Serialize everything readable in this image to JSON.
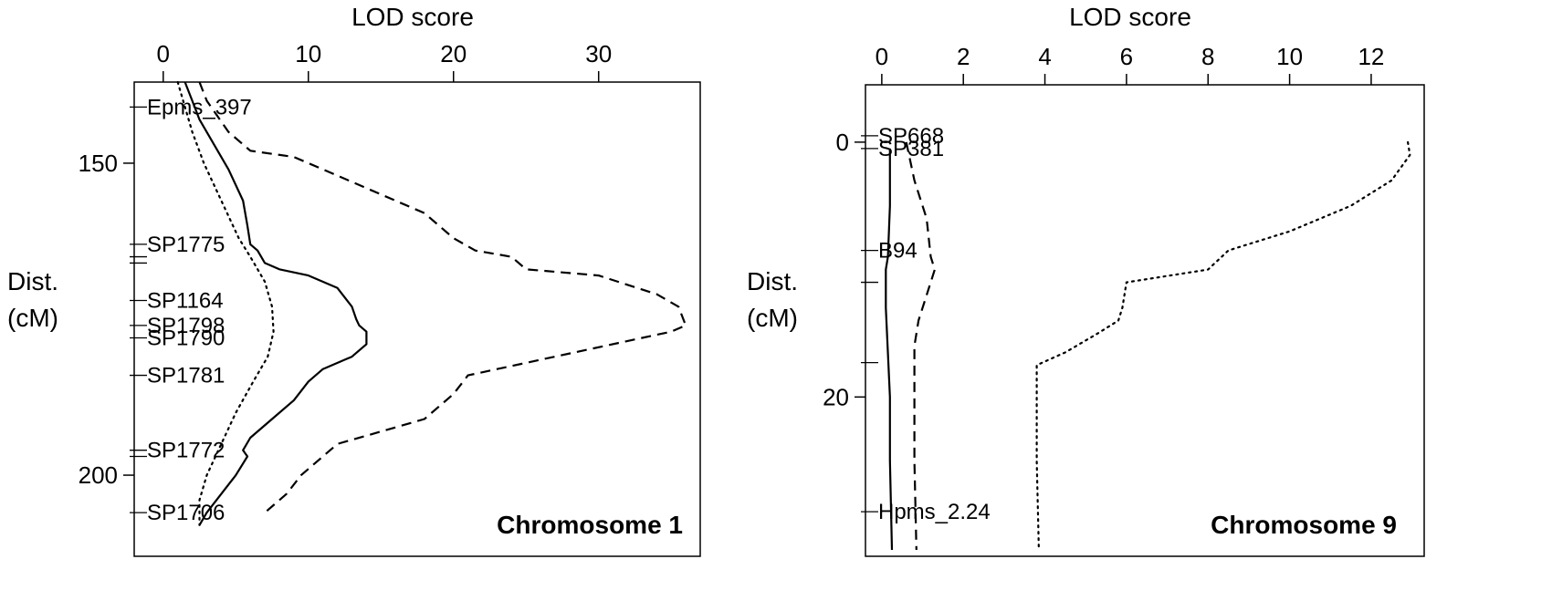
{
  "chart_data": [
    {
      "type": "line",
      "panel_label": "Chromosome 1",
      "xlabel": "LOD score",
      "ylabel_line1": "Dist.",
      "ylabel_line2": "(cM)",
      "xlim": [
        -2,
        37
      ],
      "ylim": [
        137,
        213
      ],
      "x_ticks": [
        0,
        10,
        20,
        30
      ],
      "y_ticks": [
        150,
        200
      ],
      "markers": [
        {
          "name": "Epms_397",
          "pos": 141
        },
        {
          "name": "SP1775",
          "pos": 163
        },
        {
          "name": "",
          "pos": 165
        },
        {
          "name": "",
          "pos": 166
        },
        {
          "name": "SP1164",
          "pos": 172
        },
        {
          "name": "SP1798",
          "pos": 176
        },
        {
          "name": "SP1790",
          "pos": 178
        },
        {
          "name": "SP1781",
          "pos": 184
        },
        {
          "name": "SP1772",
          "pos": 196
        },
        {
          "name": "",
          "pos": 197
        },
        {
          "name": "SP1706",
          "pos": 206
        }
      ],
      "series": [
        {
          "style": "solid",
          "points": [
            [
              1.5,
              137
            ],
            [
              2,
              140
            ],
            [
              2.5,
              143
            ],
            [
              3.5,
              147
            ],
            [
              4.5,
              151
            ],
            [
              5.5,
              156
            ],
            [
              5.8,
              160
            ],
            [
              6,
              163
            ],
            [
              6.5,
              164
            ],
            [
              7,
              166
            ],
            [
              8,
              167
            ],
            [
              10,
              168
            ],
            [
              12,
              170
            ],
            [
              13,
              173
            ],
            [
              13.3,
              175
            ],
            [
              13.5,
              176
            ],
            [
              14,
              177
            ],
            [
              14,
              179
            ],
            [
              13,
              181
            ],
            [
              11,
              183
            ],
            [
              10,
              185
            ],
            [
              9,
              188
            ],
            [
              7.5,
              191
            ],
            [
              6,
              194
            ],
            [
              5.5,
              196
            ],
            [
              5.8,
              197
            ],
            [
              5,
              200
            ],
            [
              4,
              203
            ],
            [
              3,
              206
            ],
            [
              2.5,
              208
            ]
          ]
        },
        {
          "style": "dotted",
          "points": [
            [
              1,
              137
            ],
            [
              1.5,
              141
            ],
            [
              2,
              145
            ],
            [
              2.8,
              150
            ],
            [
              4,
              156
            ],
            [
              5.2,
              162
            ],
            [
              6,
              165
            ],
            [
              7,
              169
            ],
            [
              7.5,
              173
            ],
            [
              7.6,
              177
            ],
            [
              7.2,
              181
            ],
            [
              6.2,
              185
            ],
            [
              5,
              190
            ],
            [
              4,
              195
            ],
            [
              3,
              200
            ],
            [
              2.5,
              204
            ],
            [
              2.5,
              208
            ]
          ]
        },
        {
          "style": "dashed",
          "points": [
            [
              2.5,
              137
            ],
            [
              3,
              140
            ],
            [
              4.5,
              145
            ],
            [
              6,
              148
            ],
            [
              9,
              149
            ],
            [
              12,
              152
            ],
            [
              15,
              155
            ],
            [
              18,
              158
            ],
            [
              20,
              162
            ],
            [
              21.5,
              164
            ],
            [
              24,
              165
            ],
            [
              25,
              167
            ],
            [
              30,
              168
            ],
            [
              34,
              171
            ],
            [
              35.5,
              173
            ],
            [
              36,
              176
            ],
            [
              35,
              177
            ],
            [
              33,
              178
            ],
            [
              29,
              180
            ],
            [
              25,
              182
            ],
            [
              21,
              184
            ],
            [
              20,
              187
            ],
            [
              18,
              191
            ],
            [
              15,
              193
            ],
            [
              12,
              195
            ],
            [
              11,
              197
            ],
            [
              9.5,
              200
            ],
            [
              8.5,
              203
            ],
            [
              7,
              206
            ]
          ]
        }
      ]
    },
    {
      "type": "line",
      "panel_label": "Chromosome 9",
      "xlabel": "LOD score",
      "ylabel_line1": "Dist.",
      "ylabel_line2": "(cM)",
      "xlim": [
        -0.4,
        13.3
      ],
      "ylim": [
        -4.5,
        32.5
      ],
      "x_ticks": [
        0,
        2,
        4,
        6,
        8,
        10,
        12
      ],
      "y_ticks": [
        0,
        20
      ],
      "markers": [
        {
          "name": "SP668",
          "pos": -0.5
        },
        {
          "name": "SP381",
          "pos": 0.5
        },
        {
          "name": "B94",
          "pos": 8.5
        },
        {
          "name": "",
          "pos": 11
        },
        {
          "name": "",
          "pos": 17.3
        },
        {
          "name": "Hpms_2.24",
          "pos": 29
        }
      ],
      "series": [
        {
          "style": "solid",
          "points": [
            [
              0.2,
              0.5
            ],
            [
              0.2,
              5
            ],
            [
              0.15,
              9
            ],
            [
              0.1,
              10
            ],
            [
              0.1,
              13
            ],
            [
              0.2,
              20
            ],
            [
              0.2,
              25
            ],
            [
              0.25,
              32
            ]
          ]
        },
        {
          "style": "dotted",
          "points": [
            [
              12.9,
              0
            ],
            [
              12.95,
              1
            ],
            [
              12.5,
              3
            ],
            [
              11.5,
              5
            ],
            [
              10,
              7
            ],
            [
              8.5,
              8.5
            ],
            [
              8,
              10
            ],
            [
              6,
              11
            ],
            [
              5.9,
              13
            ],
            [
              5.8,
              14
            ],
            [
              5.3,
              15
            ],
            [
              4.5,
              16.5
            ],
            [
              3.8,
              17.5
            ],
            [
              3.8,
              25
            ],
            [
              3.85,
              32
            ]
          ]
        },
        {
          "style": "dashed",
          "points": [
            [
              0.6,
              0
            ],
            [
              0.8,
              3
            ],
            [
              1.1,
              6
            ],
            [
              1.2,
              9
            ],
            [
              1.3,
              10
            ],
            [
              1.1,
              12
            ],
            [
              0.9,
              14
            ],
            [
              0.8,
              16
            ],
            [
              0.8,
              20
            ],
            [
              0.8,
              25
            ],
            [
              0.85,
              32
            ]
          ]
        }
      ]
    }
  ]
}
